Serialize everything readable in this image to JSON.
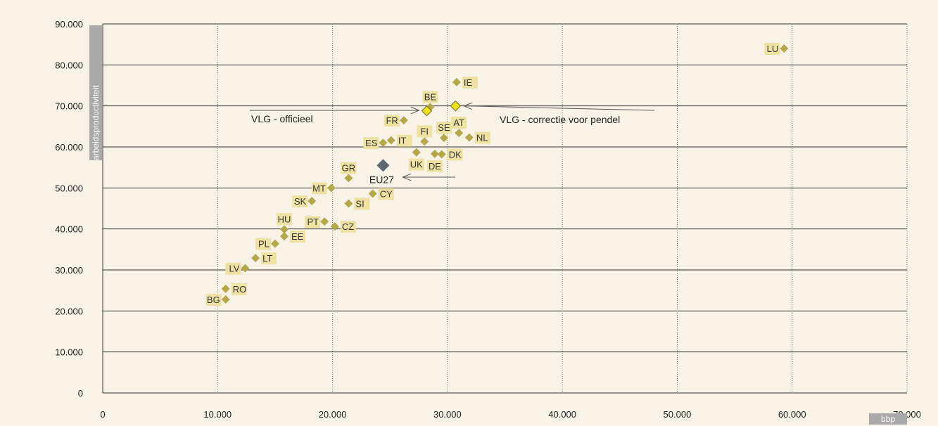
{
  "chart_data": {
    "type": "scatter",
    "xlabel": "bbp",
    "ylabel": "arbeidsproductiviteit",
    "xlim": [
      0,
      70000
    ],
    "ylim": [
      0,
      90000
    ],
    "grid": true,
    "x_ticks": [
      "0",
      "10.000",
      "20.000",
      "30.000",
      "40.000",
      "50.000",
      "60.000",
      "70.000"
    ],
    "y_ticks": [
      "0",
      "10.000",
      "20.000",
      "30.000",
      "40.000",
      "50.000",
      "60.000",
      "70.000",
      "80.000",
      "90.000"
    ],
    "colors": {
      "country": "#b5a84a",
      "label_bg": "#eee2a2",
      "eu": "#5d6870",
      "vlg": "#f2e21a",
      "vlg_stroke": "#6d6320",
      "grid": "#666666"
    },
    "points": [
      {
        "name": "LU",
        "x": 59300,
        "y": 84000
      },
      {
        "name": "IE",
        "x": 30800,
        "y": 75800
      },
      {
        "name": "BE",
        "x": 28500,
        "y": 69700
      },
      {
        "name": "FR",
        "x": 26200,
        "y": 66500
      },
      {
        "name": "AT",
        "x": 31000,
        "y": 63400
      },
      {
        "name": "SE",
        "x": 29700,
        "y": 62200
      },
      {
        "name": "NL",
        "x": 31900,
        "y": 62300
      },
      {
        "name": "FI",
        "x": 28000,
        "y": 61300
      },
      {
        "name": "IT",
        "x": 25100,
        "y": 61600
      },
      {
        "name": "ES",
        "x": 24400,
        "y": 61000
      },
      {
        "name": "UK",
        "x": 27300,
        "y": 58700
      },
      {
        "name": "DE",
        "x": 28900,
        "y": 58300
      },
      {
        "name": "DK",
        "x": 29500,
        "y": 58200
      },
      {
        "name": "GR",
        "x": 21400,
        "y": 52400
      },
      {
        "name": "MT",
        "x": 19900,
        "y": 50000
      },
      {
        "name": "CY",
        "x": 23500,
        "y": 48600
      },
      {
        "name": "SK",
        "x": 18200,
        "y": 46800
      },
      {
        "name": "SI",
        "x": 21400,
        "y": 46200
      },
      {
        "name": "PT",
        "x": 19300,
        "y": 41800
      },
      {
        "name": "CZ",
        "x": 20200,
        "y": 40600
      },
      {
        "name": "HU",
        "x": 15800,
        "y": 39900
      },
      {
        "name": "EE",
        "x": 15800,
        "y": 38200
      },
      {
        "name": "PL",
        "x": 15000,
        "y": 36400
      },
      {
        "name": "LT",
        "x": 13300,
        "y": 32900
      },
      {
        "name": "LV",
        "x": 12400,
        "y": 30400
      },
      {
        "name": "RO",
        "x": 10700,
        "y": 25400
      },
      {
        "name": "BG",
        "x": 10700,
        "y": 22800
      }
    ],
    "eu": {
      "name": "EU27",
      "x": 24400,
      "y": 55500
    },
    "vlg_official": {
      "x": 28200,
      "y": 68800
    },
    "vlg_corrected": {
      "x": 30700,
      "y": 70000
    },
    "annotations": {
      "official": "VLG - officieel",
      "corrected": "VLG - correctie voor pendel"
    }
  }
}
